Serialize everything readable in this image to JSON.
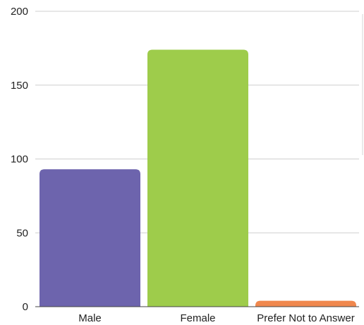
{
  "chart_data": {
    "type": "bar",
    "categories": [
      "Male",
      "Female",
      "Prefer Not to Answer"
    ],
    "values": [
      93,
      174,
      4
    ],
    "colors": [
      "#6d64ad",
      "#9ecc4b",
      "#f0884e"
    ],
    "ylim": [
      0,
      200
    ],
    "yticks": [
      0,
      50,
      100,
      150,
      200
    ],
    "grid": true,
    "title": "",
    "xlabel": "",
    "ylabel": ""
  }
}
